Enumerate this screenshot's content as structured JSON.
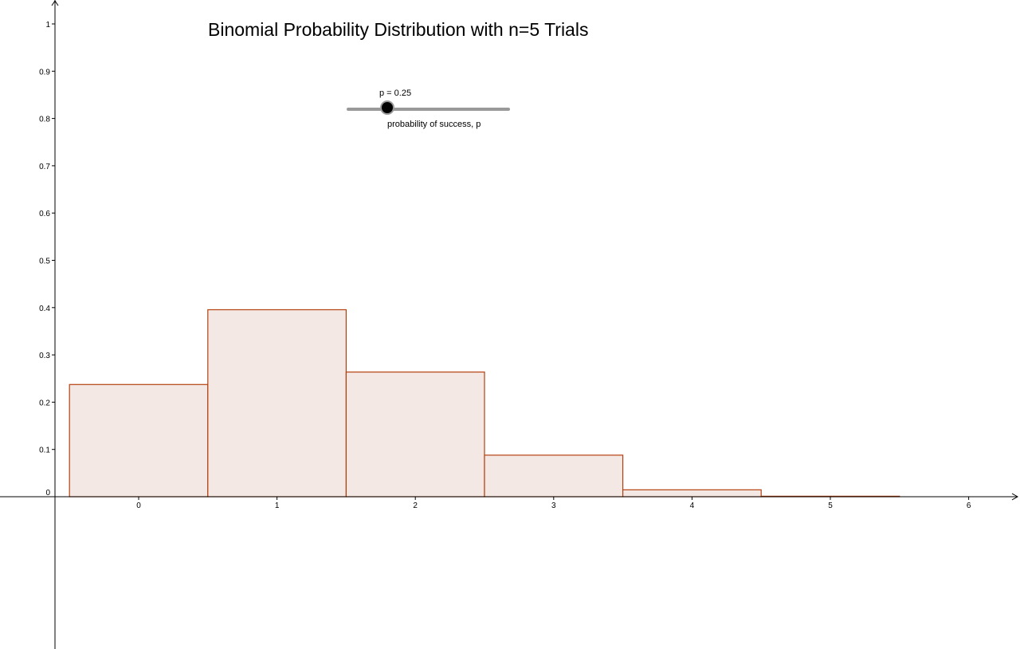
{
  "title": "Binomial Probability Distribution with n=5 Trials",
  "slider": {
    "value_label": "p = 0.25",
    "caption": "probability of success, p",
    "value": 0.25,
    "min": 0,
    "max": 1
  },
  "colors": {
    "bar_fill": "#f4e8e4",
    "bar_stroke": "#b5400f",
    "axis": "#000000"
  },
  "chart_data": {
    "type": "bar",
    "title": "Binomial Probability Distribution with n=5 Trials",
    "xlabel": "",
    "ylabel": "",
    "categories": [
      "0",
      "1",
      "2",
      "3",
      "4",
      "5"
    ],
    "x": [
      0,
      1,
      2,
      3,
      4,
      5
    ],
    "values": [
      0.2373,
      0.3955,
      0.2637,
      0.0879,
      0.0146,
      0.001
    ],
    "xlim": [
      -0.5,
      6.35
    ],
    "ylim": [
      0,
      1.04
    ],
    "x_ticks": [
      "0",
      "1",
      "2",
      "3",
      "4",
      "5",
      "6"
    ],
    "y_ticks": [
      "0",
      "0.1",
      "0.2",
      "0.3",
      "0.4",
      "0.5",
      "0.6",
      "0.7",
      "0.8",
      "0.9",
      "1"
    ],
    "grid": false
  }
}
